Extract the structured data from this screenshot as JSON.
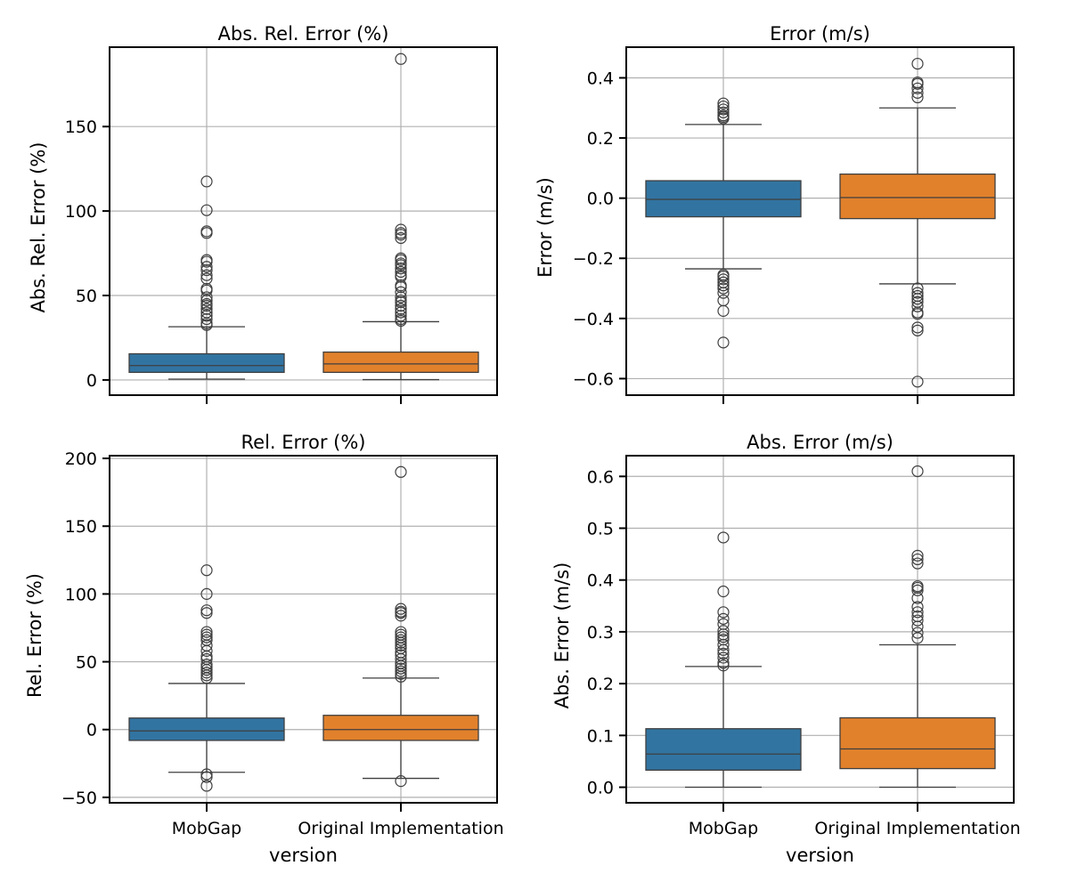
{
  "chart_data": [
    {
      "type": "box",
      "title": "Abs. Rel. Error (%)",
      "ylabel": "Abs. Rel. Error (%)",
      "xlabel": "",
      "ylim": [
        -9,
        197
      ],
      "yticks": [
        0,
        50,
        100,
        150
      ],
      "ytick_labels": [
        "0",
        "50",
        "100",
        "150"
      ],
      "categories": [
        "MobGap",
        "Original Implementation"
      ],
      "show_xtick_labels": false,
      "grid": true,
      "series": [
        {
          "name": "MobGap",
          "color": "#3274a1",
          "stats": {
            "whislo": 0.5,
            "q1": 4.5,
            "median": 8.5,
            "q3": 15.5,
            "whishi": 31.5
          },
          "fliers": [
            32.5,
            33.5,
            36,
            38,
            40,
            42,
            44,
            45,
            47,
            49,
            53,
            54,
            60,
            62,
            65,
            67,
            70,
            71,
            87,
            88,
            100.5,
            117.5
          ]
        },
        {
          "name": "Original Implementation",
          "color": "#e1812c",
          "stats": {
            "whislo": 0.2,
            "q1": 4.5,
            "median": 9.5,
            "q3": 16.5,
            "whishi": 34.5
          },
          "fliers": [
            35,
            36,
            38,
            40,
            42,
            44,
            46,
            47,
            49,
            52,
            55,
            56,
            61,
            62,
            64,
            66,
            68,
            69,
            71,
            72,
            84,
            86,
            87,
            89,
            190
          ]
        }
      ]
    },
    {
      "type": "box",
      "title": "Error (m/s)",
      "ylabel": "Error (m/s)",
      "xlabel": "",
      "ylim": [
        -0.655,
        0.502
      ],
      "yticks": [
        -0.6,
        -0.4,
        -0.2,
        0.0,
        0.2,
        0.4
      ],
      "ytick_labels": [
        "−0.6",
        "−0.4",
        "−0.2",
        "0.0",
        "0.2",
        "0.4"
      ],
      "categories": [
        "MobGap",
        "Original Implementation"
      ],
      "show_xtick_labels": false,
      "grid": true,
      "series": [
        {
          "name": "MobGap",
          "color": "#3274a1",
          "stats": {
            "whislo": -0.235,
            "q1": -0.062,
            "median": -0.004,
            "q3": 0.058,
            "whishi": 0.245
          },
          "fliers": [
            0.265,
            0.27,
            0.275,
            0.285,
            0.295,
            0.305,
            0.315,
            -0.255,
            -0.26,
            -0.27,
            -0.28,
            -0.29,
            -0.3,
            -0.315,
            -0.34,
            -0.375,
            -0.48
          ]
        },
        {
          "name": "Original Implementation",
          "color": "#e1812c",
          "stats": {
            "whislo": -0.285,
            "q1": -0.068,
            "median": 0.002,
            "q3": 0.08,
            "whishi": 0.3
          },
          "fliers": [
            0.335,
            0.35,
            0.365,
            0.38,
            0.385,
            0.447,
            -0.3,
            -0.315,
            -0.325,
            -0.335,
            -0.345,
            -0.36,
            -0.38,
            -0.385,
            -0.43,
            -0.44,
            -0.61
          ]
        }
      ]
    },
    {
      "type": "box",
      "title": "Rel. Error (%)",
      "ylabel": "Rel. Error (%)",
      "xlabel": "version",
      "ylim": [
        -54,
        202
      ],
      "yticks": [
        -50,
        0,
        50,
        100,
        150,
        200
      ],
      "ytick_labels": [
        "−50",
        "0",
        "50",
        "100",
        "150",
        "200"
      ],
      "categories": [
        "MobGap",
        "Original Implementation"
      ],
      "show_xtick_labels": true,
      "grid": true,
      "series": [
        {
          "name": "MobGap",
          "color": "#3274a1",
          "stats": {
            "whislo": -31.5,
            "q1": -8,
            "median": -1,
            "q3": 8.5,
            "whishi": 34
          },
          "fliers": [
            38,
            40,
            42,
            44,
            46,
            48,
            52,
            54,
            58,
            62,
            66,
            68,
            70,
            72,
            86,
            88,
            100,
            117.5,
            -33,
            -35,
            -41.5
          ]
        },
        {
          "name": "Original Implementation",
          "color": "#e1812c",
          "stats": {
            "whislo": -36,
            "q1": -8,
            "median": 0,
            "q3": 10.5,
            "whishi": 38
          },
          "fliers": [
            39,
            41,
            43,
            45,
            47,
            49,
            52,
            55,
            57,
            60,
            62,
            64,
            66,
            68,
            70,
            72,
            84,
            86,
            87,
            89,
            190,
            -38
          ]
        }
      ]
    },
    {
      "type": "box",
      "title": "Abs. Error (m/s)",
      "ylabel": "Abs. Error (m/s)",
      "xlabel": "version",
      "ylim": [
        -0.03,
        0.64
      ],
      "yticks": [
        0.0,
        0.1,
        0.2,
        0.3,
        0.4,
        0.5,
        0.6
      ],
      "ytick_labels": [
        "0.0",
        "0.1",
        "0.2",
        "0.3",
        "0.4",
        "0.5",
        "0.6"
      ],
      "categories": [
        "MobGap",
        "Original Implementation"
      ],
      "show_xtick_labels": true,
      "grid": true,
      "series": [
        {
          "name": "MobGap",
          "color": "#3274a1",
          "stats": {
            "whislo": 0.0,
            "q1": 0.033,
            "median": 0.064,
            "q3": 0.113,
            "whishi": 0.233
          },
          "fliers": [
            0.235,
            0.24,
            0.25,
            0.258,
            0.265,
            0.275,
            0.285,
            0.29,
            0.295,
            0.302,
            0.315,
            0.325,
            0.338,
            0.378,
            0.482
          ]
        },
        {
          "name": "Original Implementation",
          "color": "#e1812c",
          "stats": {
            "whislo": 0.0,
            "q1": 0.036,
            "median": 0.074,
            "q3": 0.134,
            "whishi": 0.275
          },
          "fliers": [
            0.288,
            0.298,
            0.31,
            0.322,
            0.33,
            0.338,
            0.348,
            0.365,
            0.38,
            0.385,
            0.388,
            0.432,
            0.44,
            0.447,
            0.61
          ]
        }
      ]
    }
  ]
}
